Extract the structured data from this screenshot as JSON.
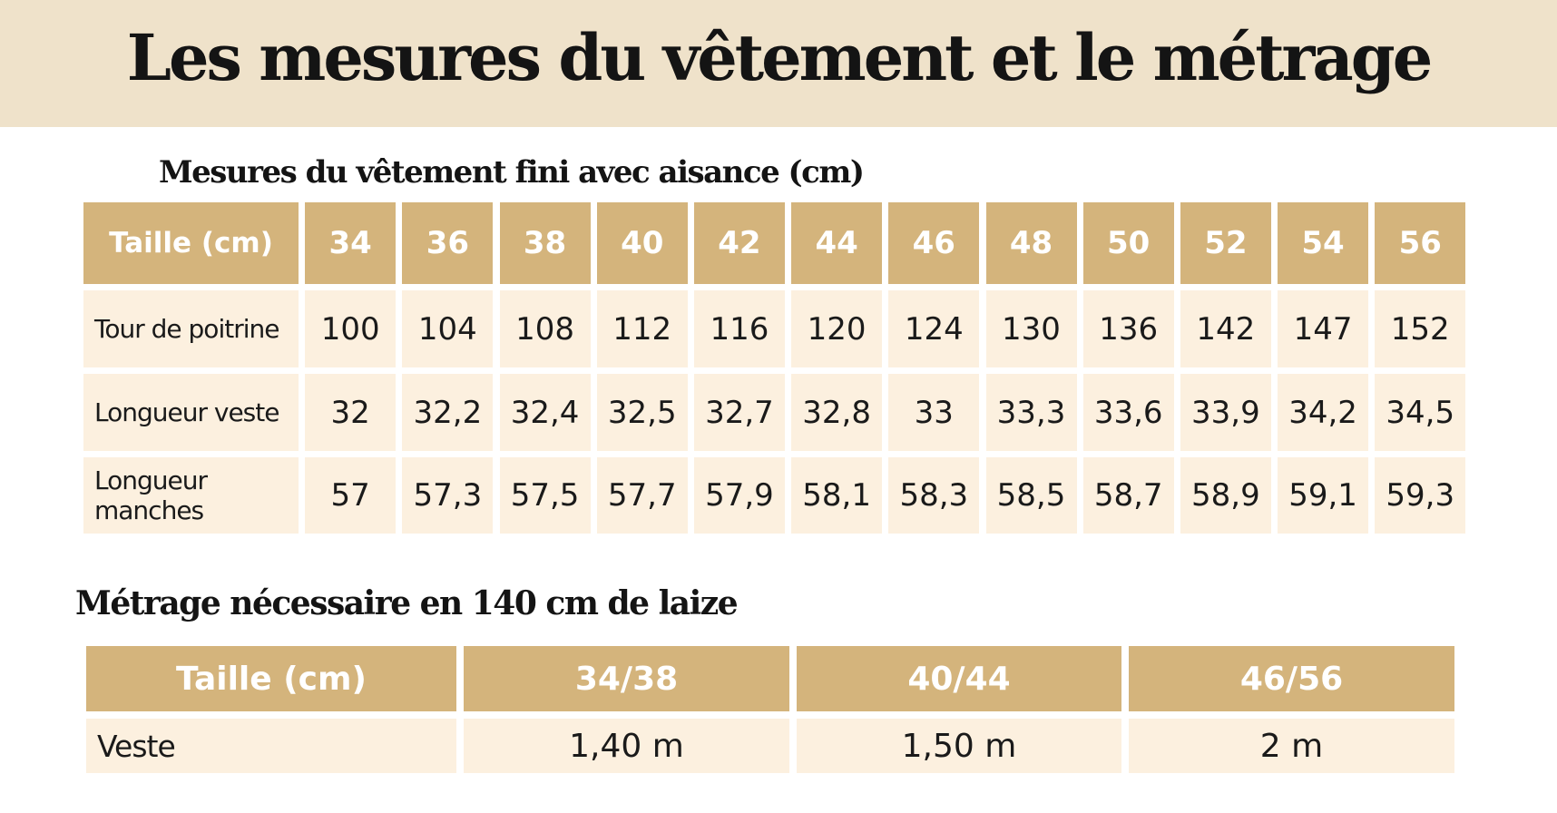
{
  "title": "Les mesures du vêtement et le métrage",
  "measures": {
    "heading": "Mesures du vêtement fini avec aisance (cm)",
    "header_label": "Taille (cm)",
    "sizes": [
      "34",
      "36",
      "38",
      "40",
      "42",
      "44",
      "46",
      "48",
      "50",
      "52",
      "54",
      "56"
    ],
    "rows": [
      {
        "label": "Tour de poitrine",
        "values": [
          "100",
          "104",
          "108",
          "112",
          "116",
          "120",
          "124",
          "130",
          "136",
          "142",
          "147",
          "152"
        ]
      },
      {
        "label": "Longueur veste",
        "values": [
          "32",
          "32,2",
          "32,4",
          "32,5",
          "32,7",
          "32,8",
          "33",
          "33,3",
          "33,6",
          "33,9",
          "34,2",
          "34,5"
        ]
      },
      {
        "label": "Longueur manches",
        "values": [
          "57",
          "57,3",
          "57,5",
          "57,7",
          "57,9",
          "58,1",
          "58,3",
          "58,5",
          "58,7",
          "58,9",
          "59,1",
          "59,3"
        ]
      }
    ]
  },
  "yardage": {
    "heading": "Métrage nécessaire en 140 cm de laize",
    "header_label": "Taille (cm)",
    "sizes": [
      "34/38",
      "40/44",
      "46/56"
    ],
    "rows": [
      {
        "label": "Veste",
        "values": [
          "1,40 m",
          "1,50 m",
          "2 m"
        ]
      }
    ]
  },
  "colors": {
    "band": "#EFE2CA",
    "header": "#D4B47C",
    "cell": "#FCF0DF"
  }
}
